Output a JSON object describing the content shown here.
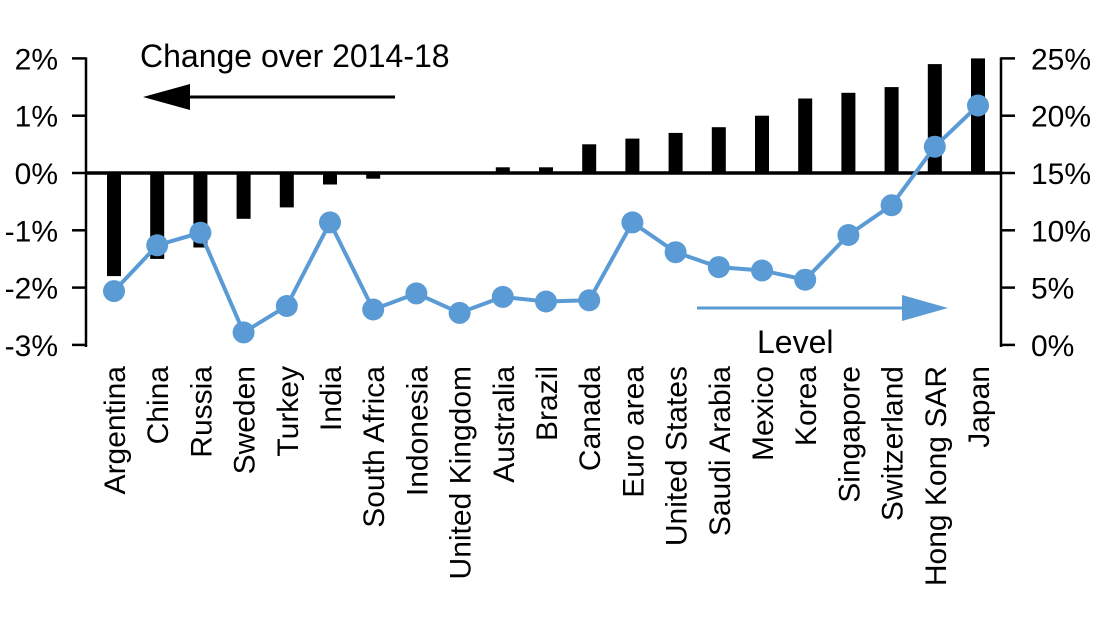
{
  "chart_data": {
    "type": "bar",
    "subtype": "dual-axis-bar-line-combo",
    "title": "Change over 2014-18",
    "grid": "off",
    "background": "#FFFFFF",
    "categories": [
      "Argentina",
      "China",
      "Russia",
      "Sweden",
      "Turkey",
      "India",
      "South Africa",
      "Indonesia",
      "United Kingdom",
      "Australia",
      "Brazil",
      "Canada",
      "Euro area",
      "United States",
      "Saudi Arabia",
      "Mexico",
      "Korea",
      "Singapore",
      "Switzerland",
      "Hong Kong SAR",
      "Japan"
    ],
    "series": [
      {
        "name": "Change over 2014-18",
        "type": "bar",
        "axis": "left",
        "color": "#000000",
        "values": [
          -1.8,
          -1.5,
          -1.3,
          -0.8,
          -0.6,
          -0.2,
          -0.1,
          0.0,
          0.0,
          0.1,
          0.1,
          0.5,
          0.6,
          0.7,
          0.8,
          1.0,
          1.3,
          1.4,
          1.5,
          1.9,
          2.0
        ]
      },
      {
        "name": "Level",
        "type": "line",
        "axis": "right",
        "color": "#5B9BD5",
        "values": [
          4.7,
          8.7,
          9.8,
          1.1,
          3.4,
          10.7,
          3.1,
          4.5,
          2.8,
          4.2,
          3.8,
          3.9,
          10.7,
          8.1,
          6.8,
          6.5,
          5.7,
          9.6,
          12.2,
          17.3,
          20.9
        ]
      }
    ],
    "left_axis": {
      "min": -3,
      "max": 2,
      "tick_step": 1,
      "tick_labels": [
        "2%",
        "1%",
        "0%",
        "-1%",
        "-2%",
        "-3%"
      ]
    },
    "right_axis": {
      "min": 0,
      "max": 25,
      "tick_step": 5,
      "tick_labels": [
        "25%",
        "20%",
        "15%",
        "10%",
        "5%",
        "0%"
      ]
    },
    "annotations": [
      {
        "text": "Change over 2014-18",
        "arrow_direction": "left",
        "color": "#000000"
      },
      {
        "text": "Level",
        "arrow_direction": "right",
        "color": "#5B9BD5"
      }
    ]
  }
}
